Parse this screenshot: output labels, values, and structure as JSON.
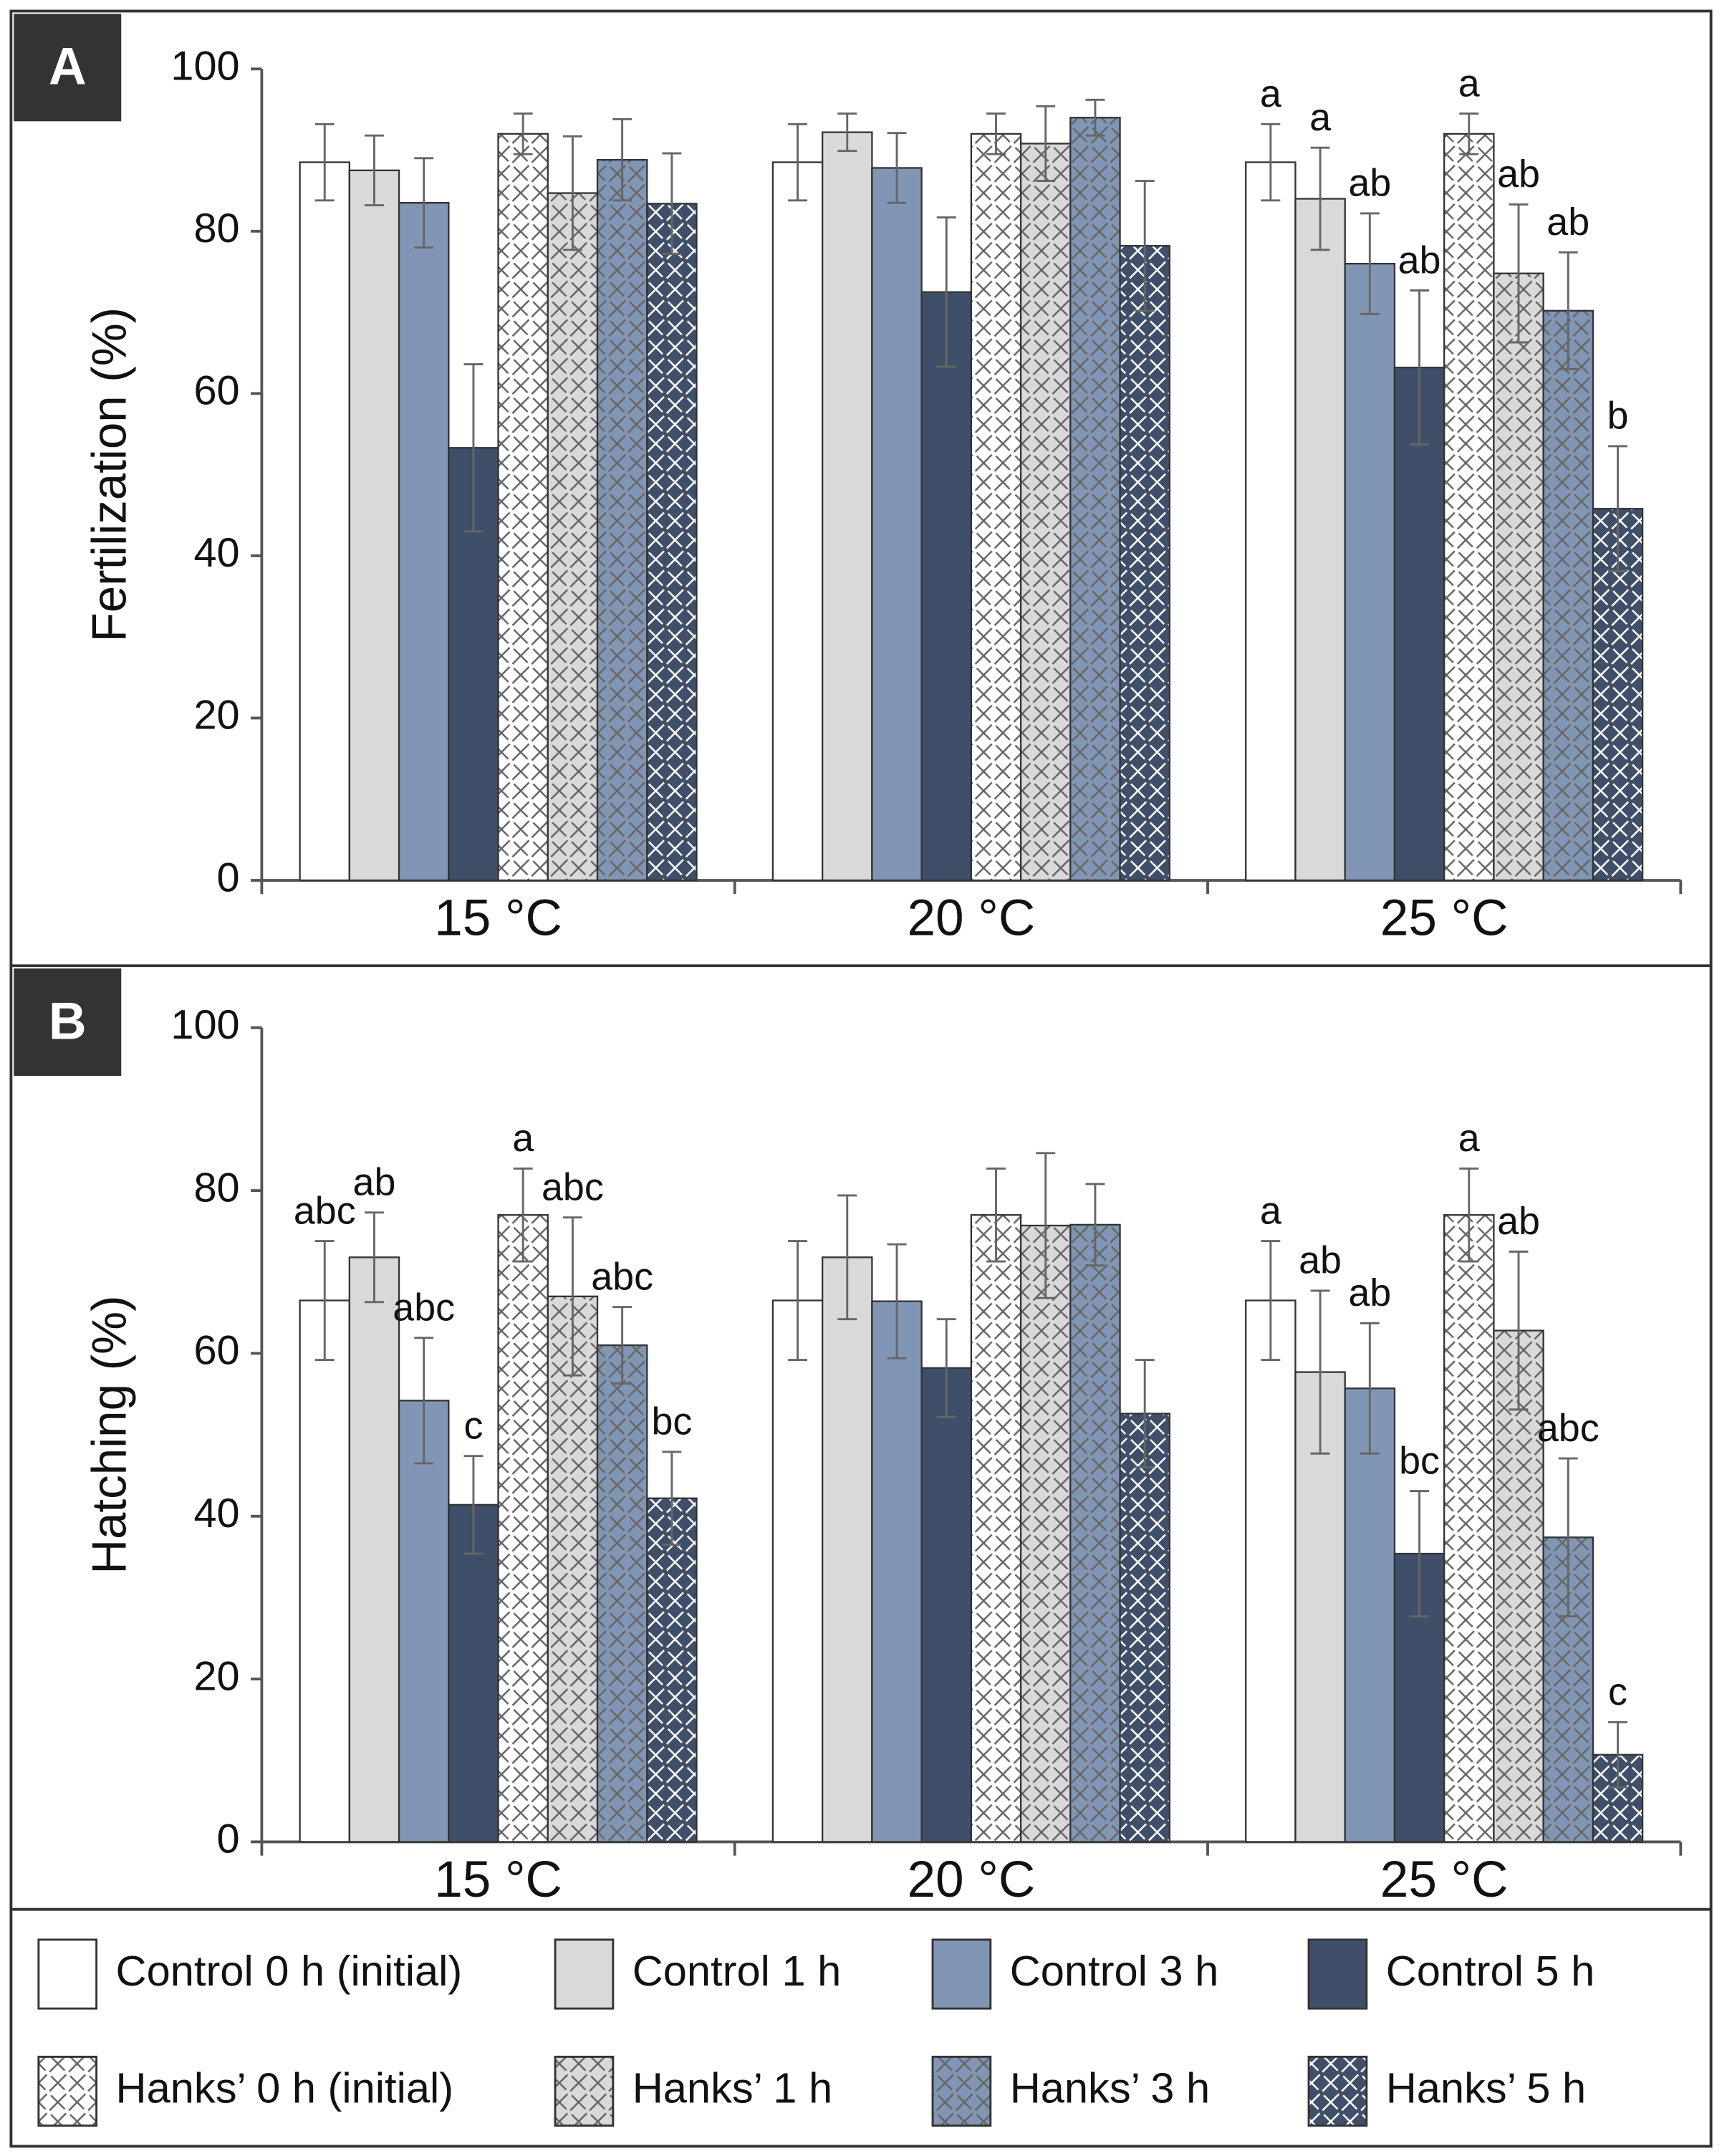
{
  "chart_data": [
    {
      "type": "bar",
      "panel": "A",
      "ylabel": "Fertilization (%)",
      "categories": [
        "15 °C",
        "20 °C",
        "25 °C"
      ],
      "ylim": [
        0,
        100
      ],
      "yticks": [
        0,
        20,
        40,
        60,
        80,
        100
      ],
      "series": [
        {
          "name": "Control 0 h (initial)",
          "color": "#ffffff",
          "pattern": false,
          "values": [
            88.5,
            88.5,
            88.5
          ],
          "errors": [
            4.7,
            4.7,
            4.7
          ],
          "letters": [
            null,
            null,
            "a"
          ]
        },
        {
          "name": "Control 1 h",
          "color": "#d9d9d9",
          "pattern": false,
          "values": [
            87.5,
            92.2,
            84
          ],
          "errors": [
            4.3,
            2.3,
            6.3
          ],
          "letters": [
            null,
            null,
            "a"
          ]
        },
        {
          "name": "Control 3 h",
          "color": "#8096b4",
          "pattern": false,
          "values": [
            83.5,
            87.8,
            76
          ],
          "errors": [
            5.5,
            4.3,
            6.2
          ],
          "letters": [
            null,
            null,
            "ab"
          ]
        },
        {
          "name": "Control 5 h",
          "color": "#3f4f69",
          "pattern": false,
          "values": [
            53.3,
            72.5,
            63.2
          ],
          "errors": [
            10.3,
            9.2,
            9.5
          ],
          "letters": [
            null,
            null,
            "ab"
          ]
        },
        {
          "name": "Hanks’ 0 h (initial)",
          "color": "#ffffff",
          "pattern": true,
          "values": [
            92,
            92,
            92
          ],
          "errors": [
            2.5,
            2.5,
            2.5
          ],
          "letters": [
            null,
            null,
            "a"
          ]
        },
        {
          "name": "Hanks’ 1 h",
          "color": "#d9d9d9",
          "pattern": true,
          "values": [
            84.7,
            90.8,
            74.8
          ],
          "errors": [
            7,
            4.6,
            8.5
          ],
          "letters": [
            null,
            null,
            "ab"
          ]
        },
        {
          "name": "Hanks’ 3 h",
          "color": "#8096b4",
          "pattern": true,
          "values": [
            88.8,
            94,
            70.2
          ],
          "errors": [
            5,
            2.2,
            7.2
          ],
          "letters": [
            null,
            null,
            "ab"
          ]
        },
        {
          "name": "Hanks’ 5 h",
          "color": "#3f4f69",
          "pattern": true,
          "values": [
            83.4,
            78.2,
            45.8
          ],
          "errors": [
            6.2,
            8,
            7.7
          ],
          "letters": [
            null,
            null,
            "b"
          ]
        }
      ]
    },
    {
      "type": "bar",
      "panel": "B",
      "ylabel": "Hatching (%)",
      "categories": [
        "15 °C",
        "20 °C",
        "25 °C"
      ],
      "ylim": [
        0,
        100
      ],
      "yticks": [
        0,
        20,
        40,
        60,
        80,
        100
      ],
      "series": [
        {
          "values": [
            66.5,
            66.5,
            66.5
          ],
          "errors": [
            7.3,
            7.3,
            7.3
          ],
          "letters": [
            "abc",
            null,
            "a"
          ]
        },
        {
          "values": [
            71.8,
            71.8,
            57.7
          ],
          "errors": [
            5.5,
            7.6,
            10
          ],
          "letters": [
            "ab",
            null,
            "ab"
          ]
        },
        {
          "values": [
            54.2,
            66.4,
            55.7
          ],
          "errors": [
            7.7,
            7,
            8
          ],
          "letters": [
            "abc",
            null,
            "ab"
          ]
        },
        {
          "values": [
            41.4,
            58.2,
            35.4
          ],
          "errors": [
            6,
            6,
            7.7
          ],
          "letters": [
            "c",
            null,
            "bc"
          ]
        },
        {
          "values": [
            77,
            77,
            77
          ],
          "errors": [
            5.7,
            5.7,
            5.7
          ],
          "letters": [
            "a",
            null,
            "a"
          ]
        },
        {
          "values": [
            67,
            75.7,
            62.8
          ],
          "errors": [
            9.7,
            8.9,
            9.7
          ],
          "letters": [
            "abc",
            null,
            "ab"
          ]
        },
        {
          "values": [
            61,
            75.8,
            37.4
          ],
          "errors": [
            4.7,
            5,
            9.7
          ],
          "letters": [
            "abc",
            null,
            "abc"
          ]
        },
        {
          "values": [
            42.2,
            52.6,
            10.7
          ],
          "errors": [
            5.7,
            6.6,
            4
          ],
          "letters": [
            "bc",
            null,
            "c"
          ]
        }
      ]
    }
  ]
}
